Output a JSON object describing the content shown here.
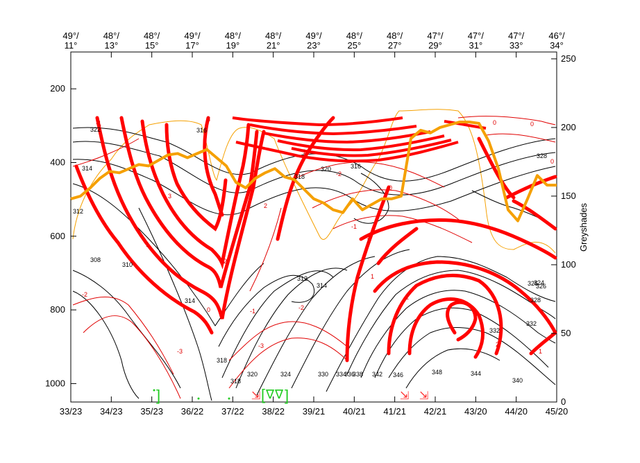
{
  "chart_data": {
    "type": "line",
    "title": "",
    "ylabel_left": "",
    "ylabel_right": "Greyshades",
    "left_axis": {
      "ticks": [
        200,
        400,
        600,
        800,
        1000
      ],
      "range": [
        1050,
        100
      ]
    },
    "right_axis": {
      "ticks": [
        0,
        50,
        100,
        150,
        200,
        250
      ],
      "range": [
        0,
        255
      ]
    },
    "top_labels": [
      {
        "lat": "49°/",
        "lon": "11°"
      },
      {
        "lat": "48°/",
        "lon": "13°"
      },
      {
        "lat": "48°/",
        "lon": "15°"
      },
      {
        "lat": "49°/",
        "lon": "17°"
      },
      {
        "lat": "48°/",
        "lon": "19°"
      },
      {
        "lat": "48°/",
        "lon": "21°"
      },
      {
        "lat": "49°/",
        "lon": "23°"
      },
      {
        "lat": "48°/",
        "lon": "25°"
      },
      {
        "lat": "48°/",
        "lon": "27°"
      },
      {
        "lat": "47°/",
        "lon": "29°"
      },
      {
        "lat": "47°/",
        "lon": "31°"
      },
      {
        "lat": "47°/",
        "lon": "33°"
      },
      {
        "lat": "46°/",
        "lon": "34°"
      }
    ],
    "bottom_labels": [
      "33/23",
      "34/23",
      "35/23",
      "36/22",
      "37/22",
      "38/22",
      "39/21",
      "40/21",
      "41/21",
      "42/21",
      "43/20",
      "44/20",
      "45/20"
    ],
    "series": [
      {
        "name": "",
        "color": "#f5a000",
        "axis": "right",
        "x": [
          0,
          2,
          4,
          6,
          8,
          10,
          12,
          14,
          16,
          18,
          20,
          22,
          24,
          26,
          28,
          30,
          32,
          34,
          36,
          38,
          40,
          42,
          44,
          46,
          48,
          50,
          52,
          54,
          56,
          58,
          60,
          62,
          64,
          66,
          68,
          70,
          72,
          74,
          76,
          78,
          80,
          82,
          84,
          86,
          88,
          90,
          92,
          94,
          96,
          98,
          100
        ],
        "values": [
          148,
          150,
          156,
          163,
          168,
          167,
          170,
          173,
          172,
          176,
          180,
          181,
          178,
          181,
          184,
          178,
          172,
          160,
          156,
          163,
          167,
          170,
          164,
          162,
          155,
          148,
          145,
          140,
          138,
          148,
          140,
          144,
          148,
          148,
          150,
          192,
          198,
          196,
          200,
          202,
          204,
          204,
          203,
          190,
          170,
          140,
          132,
          148,
          165,
          158,
          158
        ]
      }
    ],
    "black_contour_labels": [
      "322",
      "314",
      "312",
      "308",
      "310",
      "314",
      "318",
      "318",
      "320",
      "324",
      "328",
      "330",
      "332",
      "334",
      "336",
      "338",
      "340",
      "342",
      "344",
      "346",
      "348",
      "326",
      "328",
      "332",
      "326",
      "324",
      "320",
      "318",
      "316",
      "312",
      "314",
      "316"
    ],
    "red_contour_labels": [
      "-1",
      "-1",
      "-2",
      "-2",
      "-3",
      "0",
      "0",
      "1",
      "1",
      "2",
      "2",
      "3",
      "-3",
      "0",
      "1",
      "-1",
      "0",
      "-2",
      "1",
      "2",
      "3",
      "2",
      "1",
      "0"
    ],
    "markers": {
      "green_brackets": [
        "]",
        "[",
        "]"
      ],
      "green_triangles": [
        "∇",
        "∇"
      ],
      "red_flags": [
        "⇲",
        "⇲",
        "⇲"
      ]
    }
  }
}
